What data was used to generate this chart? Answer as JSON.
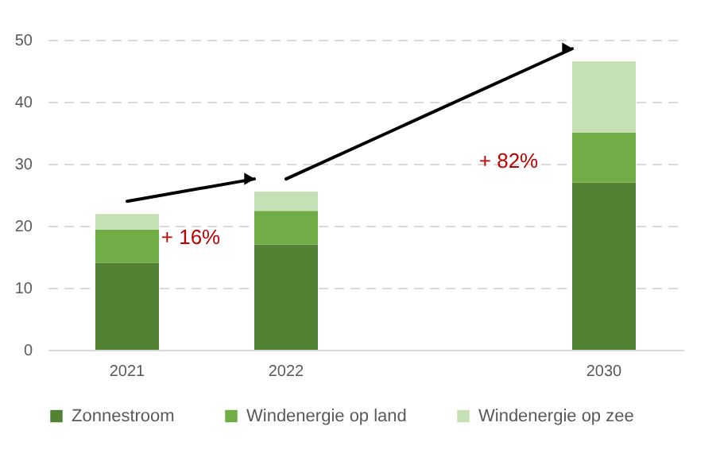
{
  "chart_data": {
    "type": "bar",
    "stacked": true,
    "categories": [
      "2021",
      "2022",
      null,
      "2030"
    ],
    "series": [
      {
        "name": "Zonnestroom",
        "color": "#548235",
        "values": [
          14,
          17,
          null,
          27
        ]
      },
      {
        "name": "Windenergie op land",
        "color": "#70ad47",
        "values": [
          5.4,
          5.4,
          null,
          8
        ]
      },
      {
        "name": "Windenergie op zee",
        "color": "#c5e0b4",
        "values": [
          2.5,
          3.1,
          null,
          11.5
        ]
      }
    ],
    "ylim": [
      0,
      50
    ],
    "yticks": [
      0,
      10,
      20,
      30,
      40,
      50
    ],
    "grid": "y",
    "legend": "bottom",
    "annotations": [
      "+ 16%",
      "+ 82%"
    ]
  }
}
